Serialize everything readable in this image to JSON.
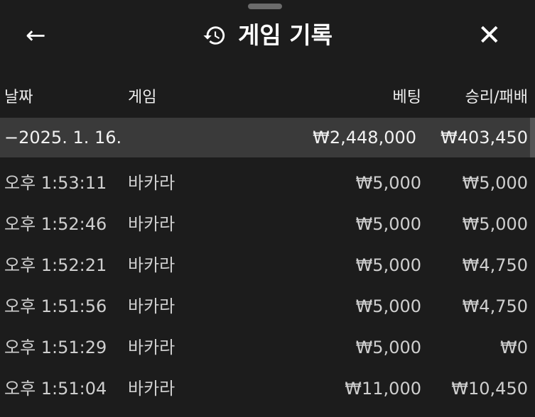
{
  "header": {
    "title": "게임 기록",
    "back_icon": "arrow-left-icon",
    "title_icon": "history-icon",
    "close_icon": "close-icon"
  },
  "columns": [
    "날짜",
    "게임",
    "베팅",
    "승리/패배"
  ],
  "group": {
    "date": "−2025. 1. 16.",
    "bet_total": "₩2,448,000",
    "win_total": "₩403,450"
  },
  "rows": [
    {
      "time": "오후 1:53:11",
      "game": "바카라",
      "bet": "₩5,000",
      "result": "₩5,000"
    },
    {
      "time": "오후 1:52:46",
      "game": "바카라",
      "bet": "₩5,000",
      "result": "₩5,000"
    },
    {
      "time": "오후 1:52:21",
      "game": "바카라",
      "bet": "₩5,000",
      "result": "₩4,750"
    },
    {
      "time": "오후 1:51:56",
      "game": "바카라",
      "bet": "₩5,000",
      "result": "₩4,750"
    },
    {
      "time": "오후 1:51:29",
      "game": "바카라",
      "bet": "₩5,000",
      "result": "₩0"
    },
    {
      "time": "오후 1:51:04",
      "game": "바카라",
      "bet": "₩11,000",
      "result": "₩10,450"
    }
  ]
}
